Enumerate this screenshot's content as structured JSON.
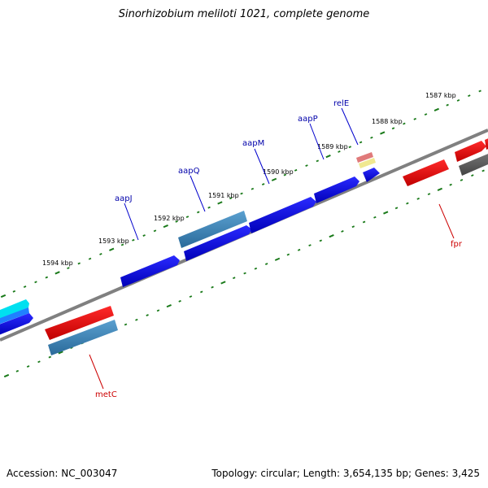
{
  "title": "Sinorhizobium meliloti 1021, complete genome",
  "footer": {
    "accession": "Accession: NC_003047",
    "summary": "Topology: circular; Length: 3,654,135 bp; Genes: 3,425"
  },
  "ruler_labels": [
    "1587 kbp",
    "1588 kbp",
    "1589 kbp",
    "1590 kbp",
    "1591 kbp",
    "1592 kbp",
    "1593 kbp",
    "1594 kbp"
  ],
  "gene_labels": [
    "relE",
    "aapP",
    "aapM",
    "aapQ",
    "aapJ",
    "fpr",
    "metC"
  ],
  "colors": {
    "backbone": "#808080",
    "tick": "#1a7a1a",
    "gene_blue": "#0000ee",
    "gene_steel": "#3a7fb5",
    "gene_red": "#ee0000",
    "gene_gray": "#555555",
    "gene_cyan": "#00e0f0",
    "gene_pink": "#e07a7a",
    "gene_yellow": "#f0e890",
    "label_blue": "#0000aa",
    "label_red": "#cc0000"
  }
}
